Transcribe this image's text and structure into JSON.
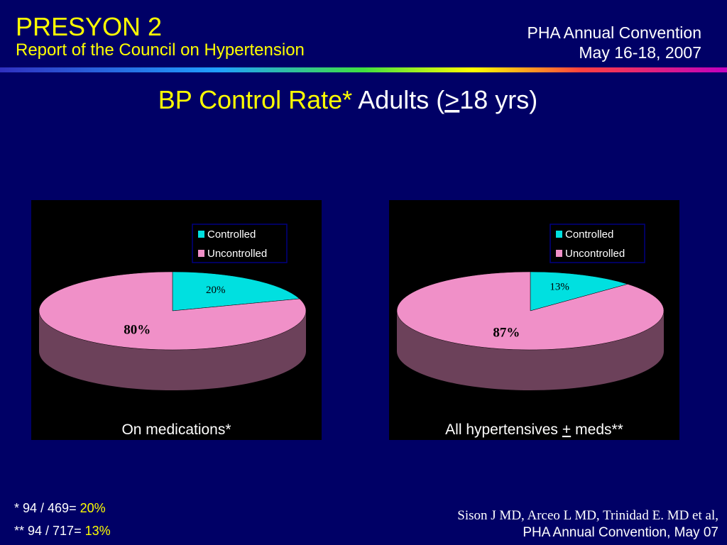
{
  "header": {
    "title": "PRESYON 2",
    "subtitle": "Report of the Council on Hypertension",
    "event": "PHA Annual Convention",
    "date": "May 16-18, 2007"
  },
  "slide_title": {
    "highlight": "BP Control Rate*",
    "parts": [
      "Adults (",
      ">",
      "18 yrs)"
    ]
  },
  "chart_data": [
    {
      "type": "pie",
      "categories": [
        "Controlled",
        "Uncontrolled"
      ],
      "values": [
        20,
        80
      ],
      "value_labels": [
        "20%",
        "80%"
      ],
      "colors": [
        "#00e0e0",
        "#f090c8"
      ],
      "caption": [
        "On medications*"
      ]
    },
    {
      "type": "pie",
      "categories": [
        "Controlled",
        "Uncontrolled"
      ],
      "values": [
        13,
        87
      ],
      "value_labels": [
        "13%",
        "87%"
      ],
      "colors": [
        "#00e0e0",
        "#f090c8"
      ],
      "caption": [
        "All hypertensives",
        "+",
        "meds**"
      ]
    }
  ],
  "footnotes": [
    [
      "*  94 / 469=",
      "20%"
    ],
    [
      "** 94 / 717=",
      "13%"
    ]
  ],
  "citation": [
    "Sison J MD, Arceo L MD, Trinidad E. MD et al,",
    "PHA Annual Convention, May 07"
  ]
}
